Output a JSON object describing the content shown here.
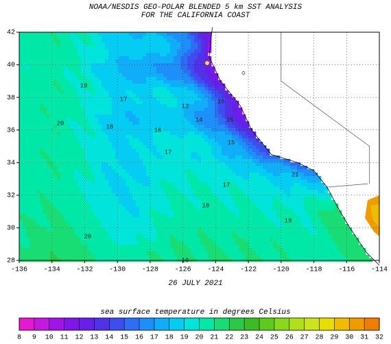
{
  "header": {
    "title": [
      "NOAA/NESDIS GEO-POLAR BLENDED 5 km SST ANALYSIS",
      "FOR THE CALIFORNIA COAST"
    ]
  },
  "map": {
    "lon_ticks": [
      -136,
      -134,
      -132,
      -130,
      -128,
      -126,
      -124,
      -122,
      -120,
      -118,
      -116,
      -114
    ],
    "lat_ticks": [
      28,
      30,
      32,
      34,
      36,
      38,
      40,
      42
    ],
    "date": "26 JULY 2021",
    "contour_labels": [
      "19",
      "17",
      "18",
      "20",
      "16",
      "17",
      "12",
      "14",
      "15",
      "16",
      "15",
      "17",
      "18",
      "19",
      "19",
      "20",
      "21"
    ]
  },
  "colorbar": {
    "label": "sea surface temperature in degrees Celsius",
    "ticks": [
      8,
      9,
      10,
      11,
      12,
      13,
      14,
      15,
      16,
      17,
      18,
      19,
      20,
      21,
      22,
      23,
      24,
      25,
      26,
      27,
      28,
      29,
      30,
      31,
      32
    ],
    "colors": [
      "#e41ad0",
      "#c41ae0",
      "#a014e8",
      "#8214ec",
      "#6620e8",
      "#5232e8",
      "#3e4eee",
      "#2e6ef4",
      "#1e8ef8",
      "#10aef8",
      "#04ccf2",
      "#00e4dc",
      "#00e8a8",
      "#18dc74",
      "#2cc848",
      "#3cbc24",
      "#5ccc1c",
      "#88d81c",
      "#aee01c",
      "#cce41c",
      "#e8dc00",
      "#f0bc00",
      "#f09c00",
      "#f07c00"
    ]
  }
}
